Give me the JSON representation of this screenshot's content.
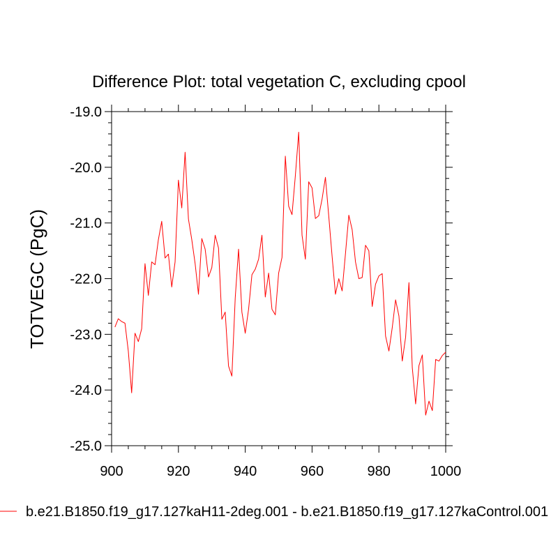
{
  "chart_data": {
    "type": "line",
    "title": "Difference Plot: total vegetation C, excluding cpool",
    "xlabel": "",
    "ylabel": "TOTVEGC  (PgC)",
    "xlim": [
      900,
      1000
    ],
    "ylim": [
      -25.0,
      -19.0
    ],
    "x_ticks": [
      900,
      920,
      940,
      960,
      980,
      1000
    ],
    "x_tick_labels": [
      "900",
      "920",
      "940",
      "960",
      "980",
      "1000"
    ],
    "y_ticks": [
      -19.0,
      -20.0,
      -21.0,
      -22.0,
      -23.0,
      -24.0,
      -25.0
    ],
    "y_tick_labels": [
      "-19.0",
      "-20.0",
      "-21.0",
      "-22.0",
      "-23.0",
      "-24.0",
      "-25.0"
    ],
    "grid": false,
    "legend_position": "bottom",
    "series": [
      {
        "name": "b.e21.B1850.f19_g17.127kaH11-2deg.001 - b.e21.B1850.f19_g17.127kaControl.001",
        "color": "#ff0000",
        "x": [
          901,
          902,
          903,
          904,
          905,
          906,
          907,
          908,
          909,
          910,
          911,
          912,
          913,
          914,
          915,
          916,
          917,
          918,
          919,
          920,
          921,
          922,
          923,
          924,
          925,
          926,
          927,
          928,
          929,
          930,
          931,
          932,
          933,
          934,
          935,
          936,
          937,
          938,
          939,
          940,
          941,
          942,
          943,
          944,
          945,
          946,
          947,
          948,
          949,
          950,
          951,
          952,
          953,
          954,
          955,
          956,
          957,
          958,
          959,
          960,
          961,
          962,
          963,
          964,
          965,
          966,
          967,
          968,
          969,
          970,
          971,
          972,
          973,
          974,
          975,
          976,
          977,
          978,
          979,
          980,
          981,
          982,
          983,
          984,
          985,
          986,
          987,
          988,
          989,
          990,
          991,
          992,
          993,
          994,
          995,
          996,
          997,
          998,
          999,
          1000
        ],
        "values": [
          -22.87,
          -22.72,
          -22.77,
          -22.8,
          -23.3,
          -24.05,
          -22.98,
          -23.13,
          -22.9,
          -21.73,
          -22.3,
          -21.7,
          -21.75,
          -21.3,
          -20.97,
          -21.63,
          -21.56,
          -22.15,
          -21.7,
          -20.23,
          -20.73,
          -19.73,
          -20.93,
          -21.3,
          -21.73,
          -22.28,
          -21.28,
          -21.47,
          -21.97,
          -21.8,
          -21.22,
          -21.45,
          -22.73,
          -22.6,
          -23.57,
          -23.75,
          -22.35,
          -21.47,
          -22.6,
          -22.98,
          -22.55,
          -21.93,
          -21.83,
          -21.65,
          -21.22,
          -22.33,
          -21.9,
          -22.55,
          -22.65,
          -21.9,
          -21.62,
          -19.8,
          -20.7,
          -20.85,
          -20.15,
          -19.37,
          -21.22,
          -21.65,
          -20.26,
          -20.37,
          -20.92,
          -20.87,
          -20.57,
          -20.18,
          -20.88,
          -21.6,
          -22.28,
          -22.0,
          -22.22,
          -21.55,
          -20.86,
          -21.12,
          -21.7,
          -22.0,
          -21.98,
          -21.4,
          -21.5,
          -22.5,
          -22.1,
          -21.95,
          -21.91,
          -23.03,
          -23.3,
          -22.88,
          -22.38,
          -22.67,
          -23.48,
          -23.05,
          -22.07,
          -23.6,
          -24.25,
          -23.56,
          -23.37,
          -24.45,
          -24.2,
          -24.37,
          -23.45,
          -23.48,
          -23.38,
          -23.32
        ]
      }
    ]
  }
}
